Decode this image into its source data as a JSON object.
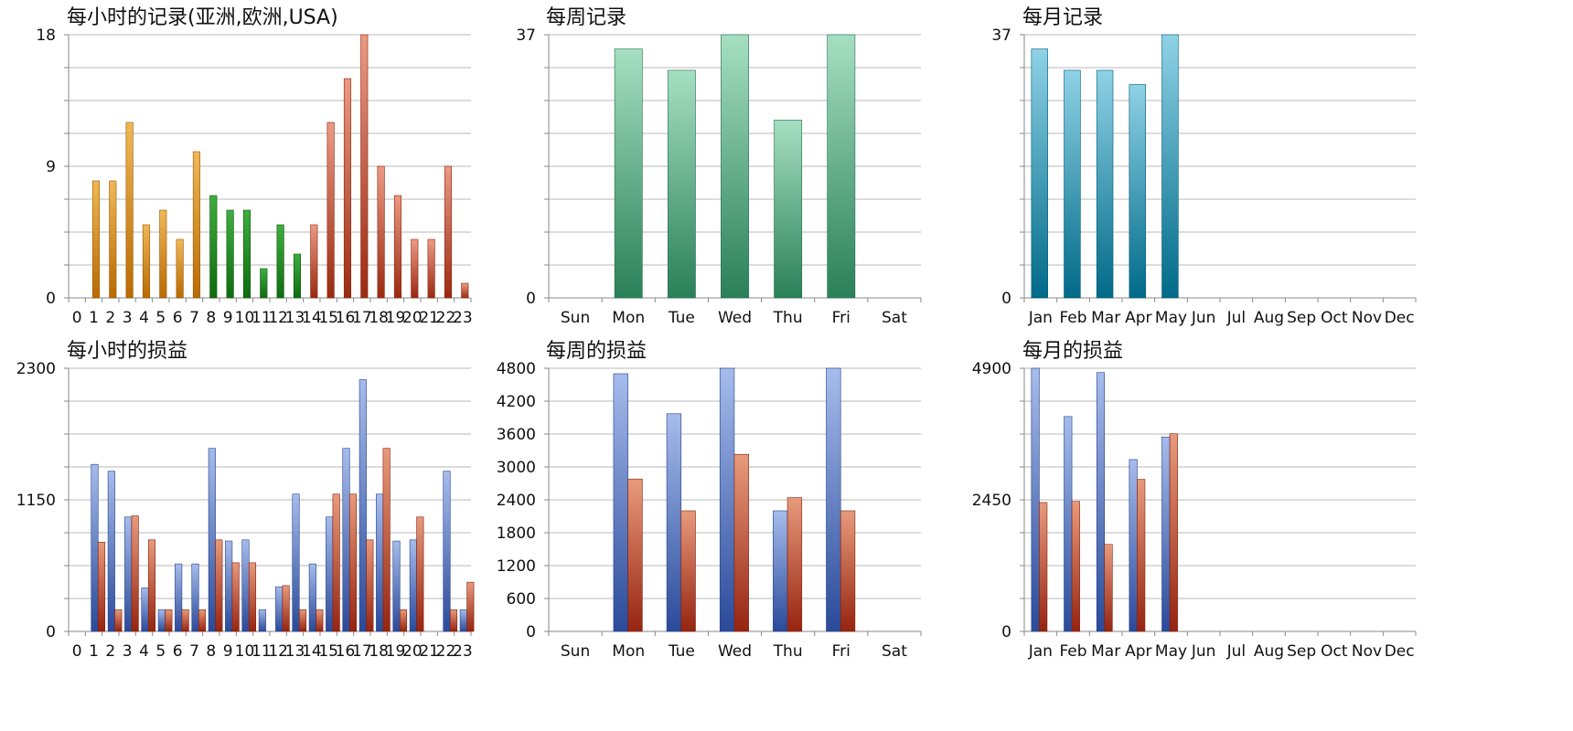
{
  "colors": {
    "orange_dark": "#b86a00",
    "orange_light": "#f0b858",
    "green_dark": "#0f6b0f",
    "green_light": "#3fae3f",
    "red_dark": "#9a2a10",
    "red_light": "#ec9a84",
    "teal_dark": "#2a8058",
    "teal_light": "#a6dfc2",
    "cyan_dark": "#006a88",
    "cyan_light": "#8fd2e6",
    "blue_dark": "#2a4a9a",
    "blue_light": "#a6bcec",
    "loss_dark": "#962410",
    "loss_light": "#e89a7c",
    "grid": "#b8b8b8",
    "axis": "#888888"
  },
  "chart_data": [
    {
      "type": "bar",
      "title": "每小时的记录(亚洲,欧洲,USA)",
      "categories": [
        "0",
        "1",
        "2",
        "3",
        "4",
        "5",
        "6",
        "7",
        "8",
        "9",
        "10",
        "11",
        "12",
        "13",
        "14",
        "15",
        "16",
        "17",
        "18",
        "19",
        "20",
        "21",
        "22",
        "23"
      ],
      "series": [
        {
          "values": [
            0,
            8,
            8,
            12,
            5,
            6,
            4,
            10,
            7,
            6,
            6,
            2,
            5,
            3,
            5,
            12,
            15,
            18,
            9,
            7,
            4,
            4,
            9,
            1
          ]
        }
      ],
      "ylim": [
        0,
        18
      ],
      "yticks": [
        0,
        9,
        18
      ],
      "grid_divisions": 8,
      "bar_colors_by_category": [
        "orange",
        "orange",
        "orange",
        "orange",
        "orange",
        "orange",
        "orange",
        "orange",
        "green",
        "green",
        "green",
        "green",
        "green",
        "green",
        "red",
        "red",
        "red",
        "red",
        "red",
        "red",
        "red",
        "red",
        "red",
        "red"
      ]
    },
    {
      "type": "bar",
      "title": "每周记录",
      "categories": [
        "Sun",
        "Mon",
        "Tue",
        "Wed",
        "Thu",
        "Fri",
        "Sat"
      ],
      "series": [
        {
          "values": [
            0,
            35,
            32,
            37,
            25,
            37,
            0
          ]
        }
      ],
      "ylim": [
        0,
        37
      ],
      "yticks": [
        0,
        37
      ],
      "grid_divisions": 8,
      "color": "teal"
    },
    {
      "type": "bar",
      "title": "每月记录",
      "categories": [
        "Jan",
        "Feb",
        "Mar",
        "Apr",
        "May",
        "Jun",
        "Jul",
        "Aug",
        "Sep",
        "Oct",
        "Nov",
        "Dec"
      ],
      "series": [
        {
          "values": [
            35,
            32,
            32,
            30,
            37,
            0,
            0,
            0,
            0,
            0,
            0,
            0
          ]
        }
      ],
      "ylim": [
        0,
        37
      ],
      "yticks": [
        0,
        37
      ],
      "grid_divisions": 8,
      "color": "cyan"
    },
    {
      "type": "bar",
      "title": "每小时的损益",
      "categories": [
        "0",
        "1",
        "2",
        "3",
        "4",
        "5",
        "6",
        "7",
        "8",
        "9",
        "10",
        "11",
        "12",
        "13",
        "14",
        "15",
        "16",
        "17",
        "18",
        "19",
        "20",
        "21",
        "22",
        "23"
      ],
      "series": [
        {
          "values": [
            0,
            1460,
            1400,
            1000,
            380,
            190,
            590,
            590,
            1600,
            790,
            800,
            190,
            390,
            1200,
            590,
            1000,
            1600,
            2200,
            1200,
            790,
            800,
            0,
            1400,
            190
          ],
          "color": "blue"
        },
        {
          "values": [
            0,
            780,
            190,
            1010,
            800,
            190,
            190,
            190,
            800,
            600,
            600,
            0,
            400,
            190,
            190,
            1200,
            1200,
            800,
            1600,
            190,
            1000,
            0,
            190,
            430
          ],
          "color": "loss"
        }
      ],
      "ylim": [
        0,
        2300
      ],
      "yticks": [
        0,
        1150,
        2300
      ],
      "grid_divisions": 8
    },
    {
      "type": "bar",
      "title": "每周的损益",
      "categories": [
        "Sun",
        "Mon",
        "Tue",
        "Wed",
        "Thu",
        "Fri",
        "Sat"
      ],
      "series": [
        {
          "values": [
            0,
            4700,
            3970,
            4800,
            2200,
            4800,
            0
          ],
          "color": "blue"
        },
        {
          "values": [
            0,
            2780,
            2200,
            3230,
            2440,
            2200,
            0
          ],
          "color": "loss"
        }
      ],
      "ylim": [
        0,
        4800
      ],
      "yticks": [
        0,
        600,
        1200,
        1800,
        2400,
        3000,
        3600,
        4200,
        4800
      ],
      "grid_divisions": 8
    },
    {
      "type": "bar",
      "title": "每月的损益",
      "categories": [
        "Jan",
        "Feb",
        "Mar",
        "Apr",
        "May",
        "Jun",
        "Jul",
        "Aug",
        "Sep",
        "Oct",
        "Nov",
        "Dec"
      ],
      "series": [
        {
          "values": [
            4900,
            4000,
            4820,
            3200,
            3620,
            0,
            0,
            0,
            0,
            0,
            0,
            0
          ],
          "color": "blue"
        },
        {
          "values": [
            2400,
            2420,
            1620,
            2830,
            3680,
            0,
            0,
            0,
            0,
            0,
            0,
            0
          ],
          "color": "loss"
        }
      ],
      "ylim": [
        0,
        4900
      ],
      "yticks": [
        0,
        2450,
        4900
      ],
      "grid_divisions": 8
    }
  ]
}
